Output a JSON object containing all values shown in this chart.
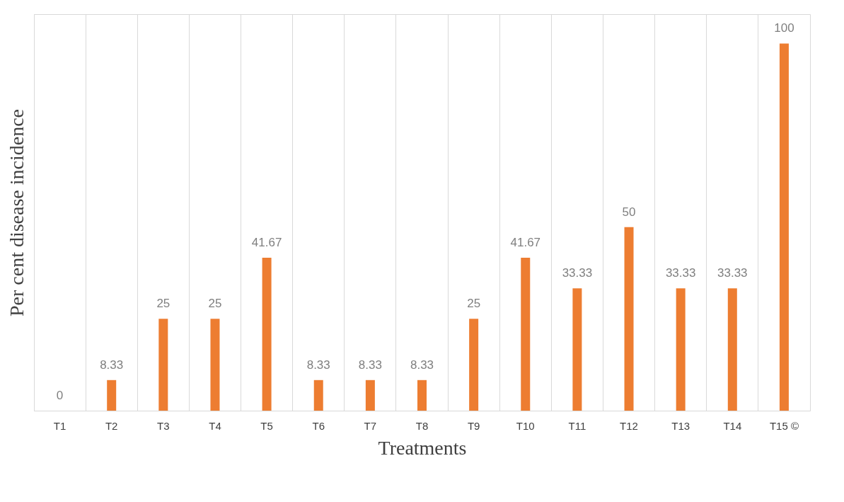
{
  "chart_data": {
    "type": "bar",
    "xlabel": "Treatments",
    "ylabel": "Per cent  disease  incidence",
    "categories": [
      "T1",
      "T2",
      "T3",
      "T4",
      "T5",
      "T6",
      "T7",
      "T8",
      "T9",
      "T10",
      "T11",
      "T12",
      "T13",
      "T14",
      "T15 ©"
    ],
    "values": [
      0,
      8.33,
      25,
      25,
      41.67,
      8.33,
      8.33,
      8.33,
      25,
      41.67,
      33.33,
      50,
      33.33,
      33.33,
      100
    ],
    "color": "#ed7d31",
    "data_labels": true,
    "grid": "x"
  }
}
